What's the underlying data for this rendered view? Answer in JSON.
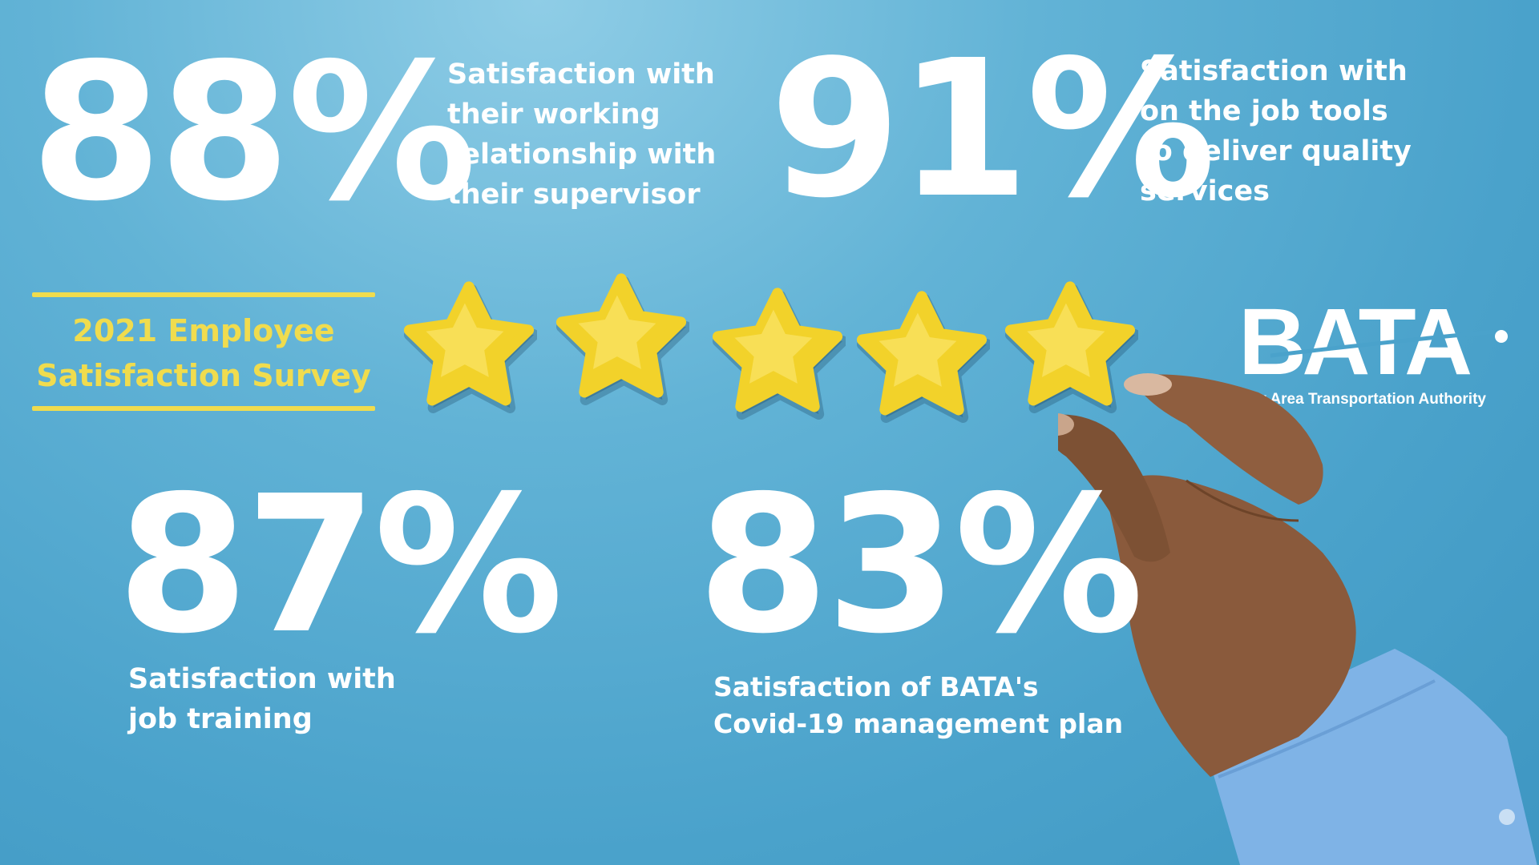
{
  "stats": [
    {
      "value": "88%",
      "label_lines": [
        "Satisfaction with",
        "their working",
        "relationship with",
        "their supervisor"
      ]
    },
    {
      "value": "91%",
      "label_lines": [
        "Satisfaction with",
        "on the job tools",
        "to deliver quality",
        "services"
      ]
    },
    {
      "value": "87%",
      "label_lines": [
        "Satisfaction with",
        "job training"
      ]
    },
    {
      "value": "83%",
      "label_lines": [
        "Satisfaction of BATA's",
        "Covid-19 management plan"
      ]
    }
  ],
  "survey_title": {
    "line1": "2021 Employee",
    "line2": "Satisfaction Survey"
  },
  "rating": {
    "stars": 5,
    "max": 5
  },
  "logo": {
    "name": "BATA",
    "tagline": "Bay Area Transportation Authority"
  },
  "colors": {
    "background": "#4aa2cb",
    "accent_yellow": "#f0dc4e",
    "star": "#f2d22a",
    "text": "#ffffff"
  },
  "icons": [
    "star-icon",
    "hand-image"
  ]
}
